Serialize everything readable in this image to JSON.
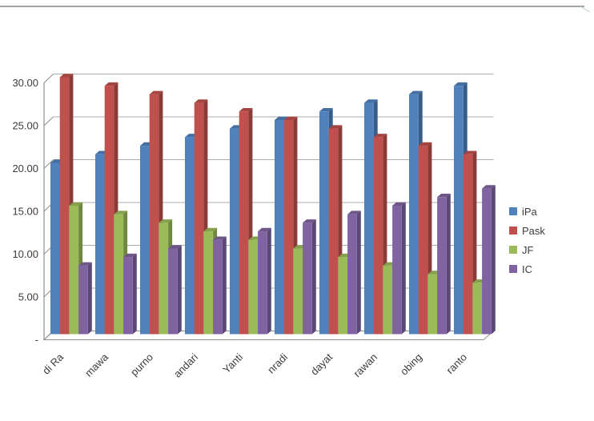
{
  "chart_data": {
    "type": "bar",
    "style": "3d-clustered-column",
    "title": "",
    "xlabel": "",
    "ylabel": "",
    "categories": [
      "di Ra",
      "mawa",
      "purno",
      "andari",
      "Yanti",
      "nradi",
      "dayat",
      "rawan",
      "obing",
      "ranto"
    ],
    "series": [
      {
        "name": "iPa",
        "color": "#4F81BD",
        "values": [
          20,
          21,
          22,
          23,
          24,
          25,
          26,
          27,
          28,
          29
        ]
      },
      {
        "name": "Pask",
        "color": "#C0504D",
        "values": [
          30,
          29,
          28,
          27,
          26,
          25,
          24,
          23,
          22,
          21
        ]
      },
      {
        "name": "JF",
        "color": "#9BBB59",
        "values": [
          15,
          14,
          13,
          12,
          11,
          10,
          9,
          8,
          7,
          6
        ]
      },
      {
        "name": "IC",
        "color": "#8064A2",
        "values": [
          8,
          9,
          10,
          11,
          12,
          13,
          14,
          15,
          16,
          17
        ]
      }
    ],
    "y_axis": {
      "min": 0,
      "max": 30,
      "step": 5,
      "tick_labels": [
        "-",
        "5.00",
        "10.00",
        "15.00",
        "20.00",
        "25.00",
        "30.00"
      ]
    },
    "x_axis": {
      "label_rotation_deg": -45
    },
    "legend_position": "right",
    "grid": true,
    "colors": {
      "gridline": "#ababab",
      "axis_line": "#8f8f8f",
      "tick_text": "#3c3c3c",
      "page_border": "#9da6a6"
    }
  }
}
